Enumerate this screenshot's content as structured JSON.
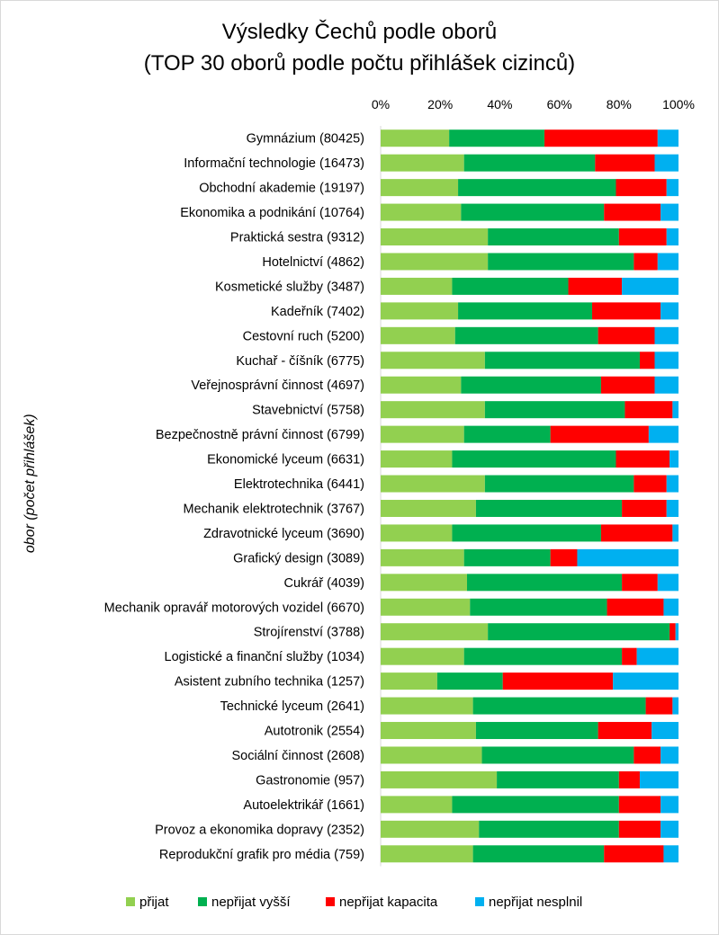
{
  "chart_data": {
    "type": "bar",
    "orientation": "horizontal",
    "stacked": "percent",
    "title": "Výsledky Čechů podle oborů",
    "subtitle": "(TOP 30 oborů podle počtu přihlášek cizinců)",
    "ylabel": "obor (počet přihlášek)",
    "xlabel": "",
    "xlim": [
      0,
      100
    ],
    "xticks": [
      "0%",
      "20%",
      "40%",
      "60%",
      "80%",
      "100%"
    ],
    "legend_position": "bottom",
    "colors": [
      "#92d050",
      "#00b050",
      "#ff0000",
      "#00b0f0"
    ],
    "categories": [
      "Gymnázium (80425)",
      "Informační technologie (16473)",
      "Obchodní akademie (19197)",
      "Ekonomika a podnikání (10764)",
      "Praktická sestra (9312)",
      "Hotelnictví (4862)",
      "Kosmetické služby (3487)",
      "Kadeřník (7402)",
      "Cestovní ruch (5200)",
      "Kuchař - číšník (6775)",
      "Veřejnosprávní činnost (4697)",
      "Stavebnictví (5758)",
      "Bezpečnostně právní činnost (6799)",
      "Ekonomické lyceum (6631)",
      "Elektrotechnika (6441)",
      "Mechanik elektrotechnik (3767)",
      "Zdravotnické lyceum (3690)",
      "Grafický design (3089)",
      "Cukrář (4039)",
      "Mechanik opravář motorových vozidel (6670)",
      "Strojírenství (3788)",
      "Logistické a finanční služby (1034)",
      "Asistent zubního technika (1257)",
      "Technické lyceum (2641)",
      "Autotronik (2554)",
      "Sociální činnost (2608)",
      "Gastronomie (957)",
      "Autoelektrikář (1661)",
      "Provoz a ekonomika dopravy (2352)",
      "Reprodukční grafik pro média (759)"
    ],
    "series": [
      {
        "name": "přijat",
        "values": [
          23,
          28,
          26,
          27,
          36,
          36,
          24,
          26,
          25,
          35,
          27,
          35,
          28,
          24,
          35,
          32,
          24,
          28,
          29,
          30,
          36,
          28,
          19,
          31,
          32,
          34,
          39,
          24,
          33,
          31
        ]
      },
      {
        "name": "nepřijat vyšší",
        "values": [
          32,
          44,
          53,
          48,
          44,
          49,
          39,
          45,
          48,
          52,
          47,
          47,
          29,
          55,
          50,
          49,
          50,
          29,
          52,
          46,
          61,
          53,
          22,
          58,
          41,
          51,
          41,
          56,
          47,
          44
        ]
      },
      {
        "name": "nepřijat kapacita",
        "values": [
          38,
          20,
          17,
          19,
          16,
          8,
          18,
          23,
          19,
          5,
          18,
          16,
          33,
          18,
          11,
          15,
          24,
          9,
          12,
          19,
          2,
          5,
          37,
          9,
          18,
          9,
          7,
          14,
          14,
          20
        ]
      },
      {
        "name": "nepřijat nesplnil",
        "values": [
          7,
          8,
          4,
          6,
          4,
          7,
          19,
          6,
          8,
          8,
          8,
          2,
          10,
          3,
          4,
          4,
          2,
          34,
          7,
          5,
          1,
          14,
          22,
          2,
          9,
          6,
          13,
          6,
          6,
          5
        ]
      }
    ]
  }
}
